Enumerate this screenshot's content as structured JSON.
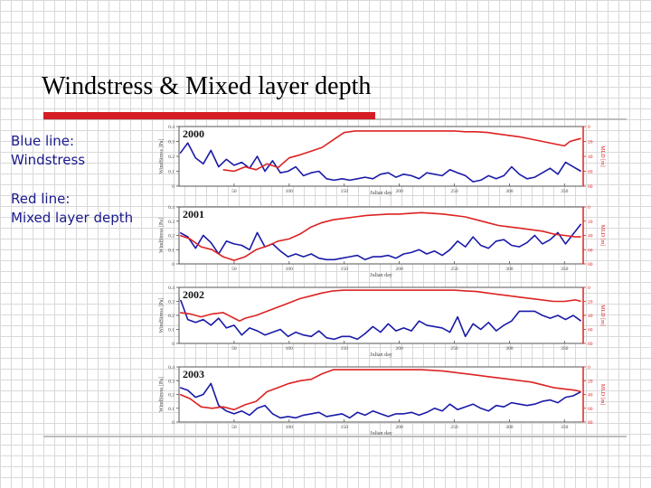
{
  "slide": {
    "title": "Windstress & Mixed layer depth",
    "legend_blue_1": "Blue line:",
    "legend_blue_2": "Windstress",
    "legend_red_1": "Red line:",
    "legend_red_2": "Mixed layer depth",
    "accent_color": "#d41d24"
  },
  "chart_data": [
    {
      "type": "line",
      "title": "2000",
      "xlabel": "Julian day",
      "ylabel": "WindStress [Pa]",
      "y2label": "MLD [m]",
      "xticks": [
        50,
        100,
        150,
        200,
        250,
        300,
        350
      ],
      "ylim": [
        0,
        0.4
      ],
      "y2lim": [
        80,
        0
      ],
      "yticks": [
        "0.4",
        "0.3",
        "0.2",
        "0.1",
        "0"
      ],
      "y2ticks": [
        "0",
        "20",
        "40",
        "60",
        "80"
      ],
      "series": [
        {
          "color": "#1a1aa8",
          "x": [
            1,
            8,
            15,
            22,
            29,
            36,
            43,
            50,
            57,
            64,
            71,
            78,
            85,
            92,
            99,
            106,
            113,
            120,
            127,
            134,
            141,
            148,
            155,
            162,
            169,
            176,
            183,
            190,
            197,
            204,
            211,
            218,
            225,
            232,
            239,
            246,
            253,
            260,
            267,
            274,
            281,
            288,
            295,
            302,
            309,
            316,
            323,
            330,
            337,
            344,
            351,
            358,
            365
          ],
          "y": [
            0.22,
            0.29,
            0.19,
            0.15,
            0.24,
            0.13,
            0.18,
            0.14,
            0.16,
            0.12,
            0.2,
            0.1,
            0.17,
            0.09,
            0.1,
            0.13,
            0.07,
            0.09,
            0.1,
            0.05,
            0.04,
            0.05,
            0.04,
            0.05,
            0.06,
            0.05,
            0.08,
            0.09,
            0.06,
            0.08,
            0.07,
            0.05,
            0.09,
            0.08,
            0.07,
            0.11,
            0.09,
            0.07,
            0.03,
            0.04,
            0.07,
            0.05,
            0.07,
            0.13,
            0.08,
            0.05,
            0.06,
            0.09,
            0.12,
            0.08,
            0.16,
            0.13,
            0.1
          ]
        },
        {
          "color": "#dd2222",
          "x": [
            40,
            50,
            60,
            70,
            80,
            90,
            100,
            110,
            120,
            130,
            140,
            150,
            160,
            170,
            180,
            190,
            200,
            210,
            220,
            230,
            240,
            250,
            260,
            270,
            280,
            290,
            300,
            310,
            320,
            330,
            340,
            350,
            355,
            360,
            365
          ],
          "y": [
            58,
            60,
            54,
            58,
            50,
            55,
            42,
            38,
            33,
            28,
            18,
            8,
            6,
            6,
            6,
            6,
            6,
            6,
            6,
            6,
            6,
            6,
            7,
            7,
            8,
            10,
            12,
            14,
            17,
            20,
            23,
            26,
            20,
            18,
            16
          ]
        }
      ]
    },
    {
      "type": "line",
      "title": "2001",
      "xlabel": "Julian day",
      "ylabel": "WindStress [Pa]",
      "y2label": "MLD [m]",
      "xticks": [
        50,
        100,
        150,
        200,
        250,
        300,
        350
      ],
      "ylim": [
        0,
        0.4
      ],
      "y2lim": [
        80,
        0
      ],
      "yticks": [
        "0.4",
        "0.3",
        "0.2",
        "0.1",
        "0"
      ],
      "y2ticks": [
        "0",
        "20",
        "40",
        "60",
        "80"
      ],
      "series": [
        {
          "color": "#1a1aa8",
          "x": [
            1,
            8,
            15,
            22,
            29,
            36,
            43,
            50,
            57,
            64,
            71,
            78,
            85,
            92,
            99,
            106,
            113,
            120,
            127,
            134,
            141,
            148,
            155,
            162,
            169,
            176,
            183,
            190,
            197,
            204,
            211,
            218,
            225,
            232,
            239,
            246,
            253,
            260,
            267,
            274,
            281,
            288,
            295,
            302,
            309,
            316,
            323,
            330,
            337,
            344,
            351,
            358,
            365
          ],
          "y": [
            0.22,
            0.19,
            0.11,
            0.2,
            0.15,
            0.07,
            0.16,
            0.14,
            0.13,
            0.1,
            0.22,
            0.12,
            0.14,
            0.09,
            0.05,
            0.07,
            0.05,
            0.07,
            0.04,
            0.03,
            0.03,
            0.04,
            0.05,
            0.06,
            0.03,
            0.05,
            0.05,
            0.06,
            0.04,
            0.07,
            0.08,
            0.1,
            0.07,
            0.09,
            0.06,
            0.1,
            0.16,
            0.12,
            0.19,
            0.13,
            0.11,
            0.16,
            0.17,
            0.13,
            0.12,
            0.15,
            0.2,
            0.14,
            0.17,
            0.22,
            0.14,
            0.21,
            0.28
          ]
        },
        {
          "color": "#dd2222",
          "x": [
            1,
            10,
            20,
            30,
            40,
            50,
            60,
            70,
            80,
            90,
            100,
            110,
            120,
            130,
            140,
            150,
            160,
            170,
            180,
            190,
            200,
            210,
            220,
            230,
            240,
            250,
            260,
            270,
            280,
            290,
            300,
            310,
            320,
            330,
            340,
            350,
            360,
            365
          ],
          "y": [
            40,
            45,
            56,
            60,
            70,
            75,
            70,
            60,
            55,
            48,
            45,
            38,
            28,
            22,
            18,
            16,
            14,
            12,
            11,
            10,
            10,
            9,
            8,
            9,
            10,
            12,
            14,
            18,
            22,
            26,
            28,
            30,
            32,
            34,
            38,
            40,
            42,
            42
          ]
        }
      ]
    },
    {
      "type": "line",
      "title": "2002",
      "xlabel": "Julian day",
      "ylabel": "WindStress [Pa]",
      "y2label": "MLD [m]",
      "xticks": [
        50,
        100,
        150,
        200,
        250,
        300,
        350
      ],
      "ylim": [
        0,
        0.4
      ],
      "y2lim": [
        80,
        0
      ],
      "yticks": [
        "0.4",
        "0.3",
        "0.2",
        "0.1",
        "0"
      ],
      "y2ticks": [
        "0",
        "20",
        "40",
        "60",
        "80"
      ],
      "series": [
        {
          "color": "#1a1aa8",
          "x": [
            1,
            8,
            15,
            22,
            29,
            36,
            43,
            50,
            57,
            64,
            71,
            78,
            85,
            92,
            99,
            106,
            113,
            120,
            127,
            134,
            141,
            148,
            155,
            162,
            169,
            176,
            183,
            190,
            197,
            204,
            211,
            218,
            225,
            232,
            239,
            246,
            253,
            260,
            267,
            274,
            281,
            288,
            295,
            302,
            309,
            316,
            323,
            330,
            337,
            344,
            351,
            358,
            365
          ],
          "y": [
            0.32,
            0.17,
            0.15,
            0.17,
            0.13,
            0.18,
            0.11,
            0.13,
            0.06,
            0.11,
            0.09,
            0.06,
            0.08,
            0.1,
            0.05,
            0.08,
            0.06,
            0.05,
            0.09,
            0.04,
            0.03,
            0.05,
            0.05,
            0.03,
            0.07,
            0.12,
            0.08,
            0.14,
            0.09,
            0.11,
            0.09,
            0.16,
            0.13,
            0.12,
            0.11,
            0.08,
            0.19,
            0.05,
            0.14,
            0.1,
            0.15,
            0.09,
            0.13,
            0.16,
            0.23,
            0.23,
            0.23,
            0.2,
            0.18,
            0.2,
            0.17,
            0.2,
            0.16
          ]
        },
        {
          "color": "#dd2222",
          "x": [
            1,
            10,
            20,
            30,
            40,
            50,
            55,
            60,
            70,
            80,
            90,
            100,
            110,
            120,
            130,
            140,
            150,
            160,
            170,
            180,
            190,
            200,
            210,
            220,
            230,
            240,
            250,
            260,
            270,
            280,
            290,
            300,
            310,
            320,
            330,
            340,
            350,
            360,
            365
          ],
          "y": [
            36,
            38,
            42,
            38,
            36,
            44,
            48,
            44,
            40,
            34,
            28,
            22,
            16,
            12,
            8,
            5,
            4,
            4,
            4,
            4,
            4,
            4,
            4,
            4,
            4,
            4,
            4,
            5,
            6,
            8,
            10,
            12,
            14,
            16,
            18,
            20,
            20,
            18,
            20
          ]
        }
      ]
    },
    {
      "type": "line",
      "title": "2003",
      "xlabel": "Julian day",
      "ylabel": "WindStress [Pa]",
      "y2label": "MLD [m]",
      "xticks": [
        50,
        100,
        150,
        200,
        250,
        300,
        350
      ],
      "ylim": [
        0,
        0.4
      ],
      "y2lim": [
        80,
        0
      ],
      "yticks": [
        "0.4",
        "0.3",
        "0.2",
        "0.1",
        "0"
      ],
      "y2ticks": [
        "0",
        "20",
        "40",
        "60",
        "80"
      ],
      "series": [
        {
          "color": "#1a1aa8",
          "x": [
            1,
            8,
            15,
            22,
            29,
            36,
            43,
            50,
            57,
            64,
            71,
            78,
            85,
            92,
            99,
            106,
            113,
            120,
            127,
            134,
            141,
            148,
            155,
            162,
            169,
            176,
            183,
            190,
            197,
            204,
            211,
            218,
            225,
            232,
            239,
            246,
            253,
            260,
            267,
            274,
            281,
            288,
            295,
            302,
            309,
            316,
            323,
            330,
            337,
            344,
            351,
            358,
            365
          ],
          "y": [
            0.25,
            0.23,
            0.18,
            0.2,
            0.28,
            0.12,
            0.08,
            0.06,
            0.08,
            0.05,
            0.1,
            0.12,
            0.06,
            0.03,
            0.04,
            0.03,
            0.05,
            0.06,
            0.07,
            0.04,
            0.05,
            0.06,
            0.03,
            0.07,
            0.05,
            0.08,
            0.06,
            0.04,
            0.06,
            0.06,
            0.07,
            0.05,
            0.07,
            0.1,
            0.08,
            0.13,
            0.09,
            0.11,
            0.13,
            0.1,
            0.08,
            0.12,
            0.11,
            0.14,
            0.13,
            0.12,
            0.13,
            0.15,
            0.16,
            0.14,
            0.18,
            0.19,
            0.22
          ]
        },
        {
          "color": "#dd2222",
          "x": [
            1,
            10,
            20,
            30,
            40,
            50,
            60,
            70,
            80,
            90,
            100,
            110,
            120,
            130,
            140,
            150,
            160,
            170,
            180,
            190,
            200,
            210,
            220,
            230,
            240,
            250,
            260,
            270,
            280,
            290,
            300,
            310,
            320,
            330,
            340,
            350,
            360,
            365
          ],
          "y": [
            40,
            46,
            58,
            60,
            58,
            62,
            55,
            50,
            36,
            30,
            24,
            20,
            18,
            10,
            4,
            4,
            4,
            4,
            4,
            4,
            4,
            4,
            4,
            5,
            6,
            8,
            10,
            12,
            14,
            16,
            18,
            20,
            22,
            26,
            30,
            32,
            34,
            36
          ]
        }
      ]
    }
  ]
}
